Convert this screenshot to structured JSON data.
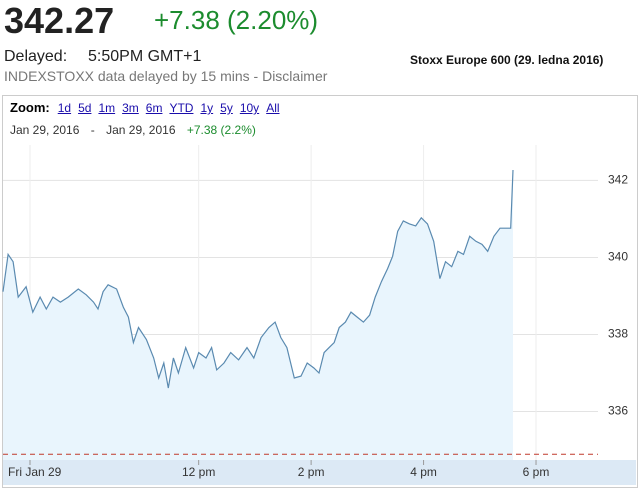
{
  "header": {
    "price": "342.27",
    "change": "+7.38 (2.20%)",
    "delayed_label": "Delayed:",
    "time": "5:50PM GMT+1",
    "notice": "INDEXSTOXX data delayed by 15 mins - Disclaimer",
    "caption": "Stoxx Europe 600 (29. ledna 2016)"
  },
  "controls": {
    "zoom_label": "Zoom:",
    "zoom_options": [
      "1d",
      "5d",
      "1m",
      "3m",
      "6m",
      "YTD",
      "1y",
      "5y",
      "10y",
      "All"
    ],
    "date_from": "Jan 29, 2016",
    "date_separator": "-",
    "date_to": "Jan 29, 2016",
    "range_change": "+7.38 (2.2%)"
  },
  "chart_data": {
    "type": "line",
    "color": "#5a8ab0",
    "fill_color": "#e9f5fd",
    "x": [
      8.52,
      8.61,
      8.7,
      8.79,
      8.93,
      9.05,
      9.18,
      9.29,
      9.41,
      9.54,
      9.68,
      9.86,
      10.0,
      10.13,
      10.21,
      10.3,
      10.39,
      10.54,
      10.66,
      10.75,
      10.84,
      10.93,
      11.07,
      11.2,
      11.29,
      11.38,
      11.46,
      11.55,
      11.64,
      11.77,
      11.91,
      12.0,
      12.13,
      12.23,
      12.32,
      12.45,
      12.57,
      12.71,
      12.86,
      12.98,
      13.11,
      13.25,
      13.36,
      13.46,
      13.57,
      13.7,
      13.82,
      13.93,
      14.05,
      14.14,
      14.23,
      14.32,
      14.41,
      14.5,
      14.61,
      14.71,
      14.82,
      14.93,
      15.04,
      15.14,
      15.25,
      15.36,
      15.45,
      15.54,
      15.64,
      15.75,
      15.86,
      15.96,
      16.07,
      16.18,
      16.29,
      16.39,
      16.5,
      16.61,
      16.71,
      16.82,
      16.93,
      17.04,
      17.14,
      17.25,
      17.36,
      17.46,
      17.55,
      17.59
    ],
    "values": [
      339.11,
      340.08,
      339.89,
      338.97,
      339.24,
      338.58,
      338.97,
      338.66,
      338.97,
      338.84,
      338.97,
      339.18,
      339.03,
      338.84,
      338.66,
      339.11,
      339.29,
      339.18,
      338.71,
      338.45,
      337.79,
      338.18,
      337.87,
      337.39,
      336.87,
      337.26,
      336.61,
      337.39,
      337.0,
      337.66,
      337.13,
      337.53,
      337.39,
      337.66,
      337.08,
      337.26,
      337.53,
      337.34,
      337.66,
      337.39,
      337.92,
      338.18,
      338.32,
      337.92,
      337.66,
      336.87,
      336.92,
      337.26,
      337.13,
      337.0,
      337.53,
      337.66,
      337.79,
      338.18,
      338.32,
      338.58,
      338.45,
      338.32,
      338.5,
      338.97,
      339.37,
      339.71,
      340.03,
      340.68,
      340.95,
      340.87,
      340.82,
      341.03,
      340.87,
      340.42,
      339.45,
      339.89,
      339.76,
      340.16,
      340.08,
      340.55,
      340.42,
      340.34,
      340.16,
      340.55,
      340.76,
      340.76,
      340.76,
      342.27
    ],
    "xlim": [
      8.52,
      18.96
    ],
    "ylim": [
      334.74,
      342.92
    ],
    "xticks": [
      {
        "value": 9,
        "label": "Fri Jan 29"
      },
      {
        "value": 12,
        "label": "12 pm"
      },
      {
        "value": 14,
        "label": "2 pm"
      },
      {
        "value": 16,
        "label": "4 pm"
      },
      {
        "value": 18,
        "label": "6 pm"
      }
    ],
    "yticks": [
      336,
      338,
      340,
      342
    ],
    "grid": true,
    "reference_value": 334.89,
    "reference_color": "#c0392b"
  }
}
